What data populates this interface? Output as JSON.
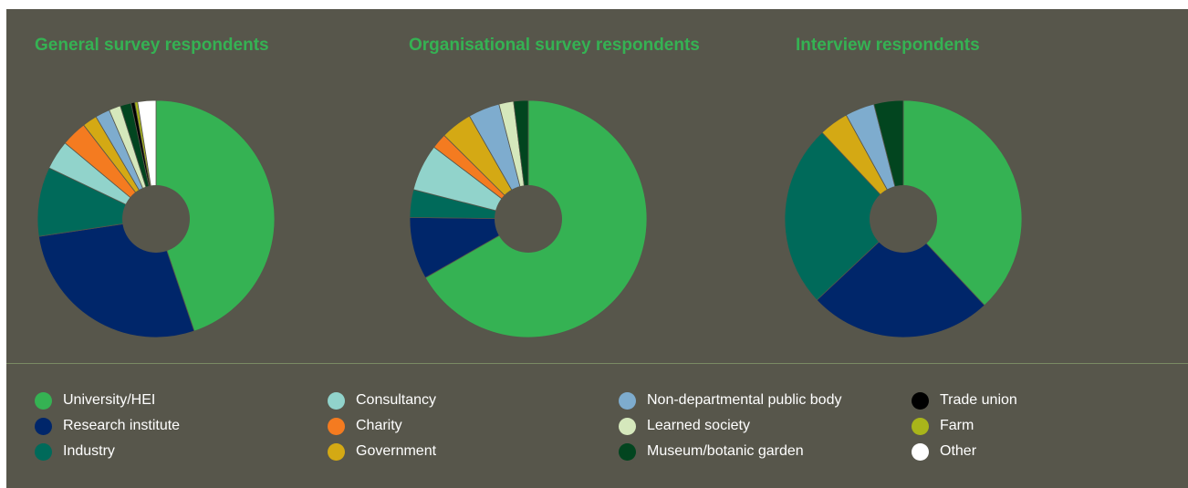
{
  "categories": [
    {
      "label": "University/HEI",
      "color": "#35b253"
    },
    {
      "label": "Research institute",
      "color": "#00266a"
    },
    {
      "label": "Industry",
      "color": "#006a5a"
    },
    {
      "label": "Consultancy",
      "color": "#91d3cb"
    },
    {
      "label": "Charity",
      "color": "#f47b20"
    },
    {
      "label": "Government",
      "color": "#d4a914"
    },
    {
      "label": "Non-departmental public body",
      "color": "#7eacce"
    },
    {
      "label": "Learned society",
      "color": "#d5e8bc"
    },
    {
      "label": "Museum/botanic garden",
      "color": "#02451f"
    },
    {
      "label": "Trade union",
      "color": "#000000"
    },
    {
      "label": "Farm",
      "color": "#a9b51a"
    },
    {
      "label": "Other",
      "color": "#ffffff"
    }
  ],
  "chart_data": [
    {
      "type": "pie",
      "title": "General survey respondents",
      "donut": true,
      "categories": [
        "University/HEI",
        "Research institute",
        "Industry",
        "Consultancy",
        "Charity",
        "Government",
        "Non-departmental public body",
        "Learned society",
        "Museum/botanic garden",
        "Trade union",
        "Farm",
        "Other"
      ],
      "values": [
        45,
        28,
        9.5,
        4,
        3.5,
        2,
        2,
        1.6,
        1.5,
        0.5,
        0.4,
        2.5
      ]
    },
    {
      "type": "pie",
      "title": "Organisational survey respondents",
      "donut": true,
      "categories": [
        "University/HEI",
        "Research institute",
        "Industry",
        "Consultancy",
        "Charity",
        "Government",
        "Non-departmental public body",
        "Learned society",
        "Museum/botanic garden",
        "Trade union",
        "Farm",
        "Other"
      ],
      "values": [
        67,
        8.5,
        3.8,
        6.4,
        2.1,
        4.3,
        4.3,
        2,
        2,
        0,
        0,
        0
      ]
    },
    {
      "type": "pie",
      "title": "Interview respondents",
      "donut": true,
      "categories": [
        "University/HEI",
        "Research institute",
        "Industry",
        "Consultancy",
        "Charity",
        "Government",
        "Non-departmental public body",
        "Learned society",
        "Museum/botanic garden",
        "Trade union",
        "Farm",
        "Other"
      ],
      "values": [
        38,
        25,
        25,
        0,
        0,
        4,
        4,
        0,
        4,
        0,
        0,
        0
      ]
    }
  ]
}
